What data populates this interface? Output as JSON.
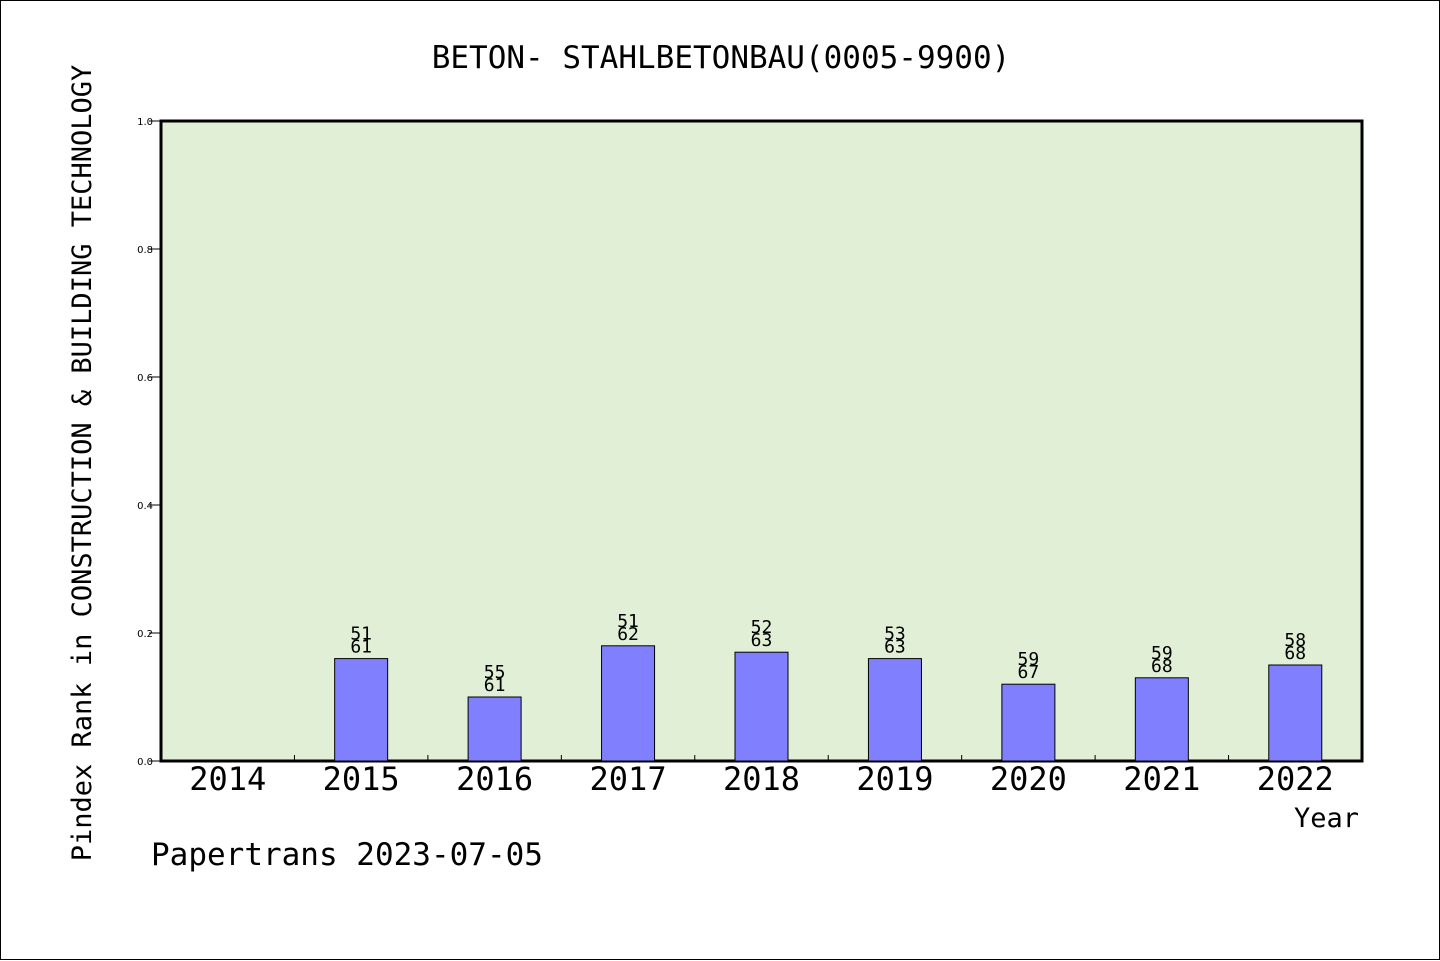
{
  "chart_data": {
    "type": "bar",
    "title": "BETON- STAHLBETONBAU(0005-9900)",
    "xlabel": "Year",
    "ylabel": "Pindex Rank in CONSTRUCTION & BUILDING TECHNOLOGY",
    "categories": [
      "2014",
      "2015",
      "2016",
      "2017",
      "2018",
      "2019",
      "2020",
      "2021",
      "2022"
    ],
    "values": [
      null,
      0.16,
      0.1,
      0.18,
      0.17,
      0.16,
      0.12,
      0.13,
      0.15
    ],
    "bar_labels": [
      null,
      [
        "51",
        "61"
      ],
      [
        "55",
        "61"
      ],
      [
        "51",
        "62"
      ],
      [
        "52",
        "63"
      ],
      [
        "53",
        "63"
      ],
      [
        "59",
        "67"
      ],
      [
        "59",
        "68"
      ],
      [
        "58",
        "68"
      ]
    ],
    "ylim": [
      0,
      1.0
    ],
    "yticks": [
      "0.0",
      "0.2",
      "0.4",
      "0.6",
      "0.8",
      "1.0"
    ],
    "grid": false,
    "colors": {
      "plot_background": "#e1efd6",
      "bar_fill": "#8080ff",
      "bar_stroke": "#000000"
    }
  },
  "footer": "Papertrans 2023-07-05"
}
